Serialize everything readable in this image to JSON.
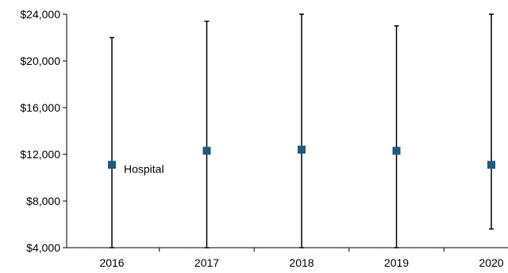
{
  "chart_data": {
    "type": "scatter",
    "title": "",
    "xlabel": "",
    "ylabel": "",
    "categories": [
      "2016",
      "2017",
      "2018",
      "2019",
      "2020"
    ],
    "ylim": [
      4000,
      24000
    ],
    "yticks": [
      4000,
      8000,
      12000,
      16000,
      20000,
      24000
    ],
    "ytick_labels": [
      "$4,000",
      "$8,000",
      "$12,000",
      "$16,000",
      "$20,000",
      "$24,000"
    ],
    "grid": false,
    "legend": "none",
    "marker_color": "#1F5A7F",
    "whisker_color": "#000000",
    "series": [
      {
        "values": [
          11100,
          12300,
          12400,
          12300,
          11100
        ],
        "low": [
          4000,
          4000,
          4000,
          4000,
          5600
        ],
        "high": [
          22000,
          23400,
          24000,
          23000,
          24000
        ]
      }
    ],
    "annotations": [
      {
        "text": "Hospital",
        "category": "2016",
        "y": 11100
      }
    ]
  }
}
